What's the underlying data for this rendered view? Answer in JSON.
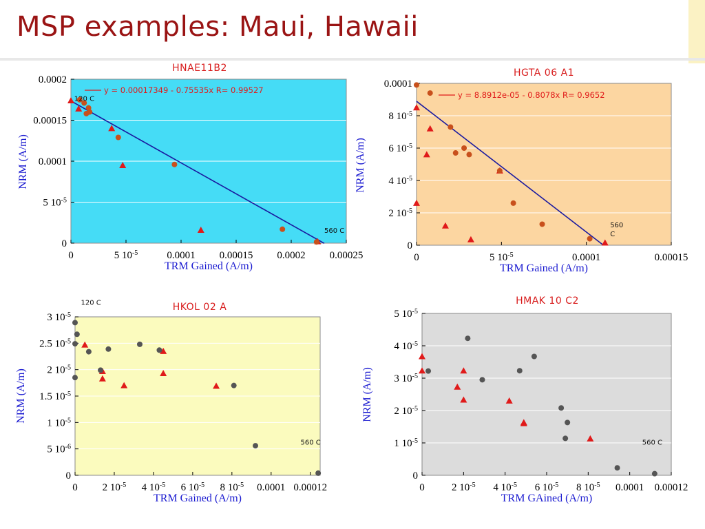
{
  "slide": {
    "title": "MSP examples: Maui, Hawaii"
  },
  "colors": {
    "title": "#9a1414",
    "chart_title": "#d81c1c",
    "axis_label": "#1a1ad0",
    "fit_line": "#1a1aa0",
    "marker_red": "#e01a1a",
    "marker_orange": "#c8501c",
    "marker_gray": "#555555"
  },
  "chart_data": [
    {
      "id": "hnae11b2",
      "type": "scatter",
      "title": "HNAE11B2",
      "xlabel": "TRM Gained (A/m)",
      "ylabel": "NRM (A/m)",
      "background": "#45dcf6",
      "xlim": [
        0,
        0.00025
      ],
      "ylim": [
        0,
        0.0002
      ],
      "xticks": [
        {
          "v": 0,
          "label": "0"
        },
        {
          "v": 5e-05,
          "label": "5 10",
          "exp": "-5"
        },
        {
          "v": 0.0001,
          "label": "0.0001"
        },
        {
          "v": 0.00015,
          "label": "0.00015"
        },
        {
          "v": 0.0002,
          "label": "0.0002"
        },
        {
          "v": 0.00025,
          "label": "0.00025"
        }
      ],
      "yticks": [
        {
          "v": 0,
          "label": "0"
        },
        {
          "v": 5e-05,
          "label": "5 10",
          "exp": "-5"
        },
        {
          "v": 0.0001,
          "label": "0.0001"
        },
        {
          "v": 0.00015,
          "label": "0.00015"
        },
        {
          "v": 0.0002,
          "label": "0.0002"
        }
      ],
      "fit": {
        "slope": -0.75535,
        "intercept": 0.00017349,
        "x": [
          0,
          0.00023
        ]
      },
      "equation": "y = 0.00017349 - 0.75535x   R= 0.99527",
      "annotations": [
        {
          "text": "120 C",
          "at": [
            3e-06,
            0.0001735
          ]
        },
        {
          "text": "560 C",
          "at": [
            0.00023,
            1.25e-05
          ]
        }
      ],
      "series": [
        {
          "marker": "triangle",
          "color": "#e01a1a",
          "points": [
            [
              0,
              0.000174
            ],
            [
              7e-06,
              0.000164
            ],
            [
              3.7e-05,
              0.00014
            ],
            [
              4.7e-05,
              9.5e-05
            ],
            [
              0.000118,
              1.6e-05
            ],
            [
              0.000224,
              2e-06
            ]
          ]
        },
        {
          "marker": "circle",
          "color": "#c8501c",
          "points": [
            [
              8e-06,
              0.000175
            ],
            [
              1.2e-05,
              0.000171
            ],
            [
              1.4e-05,
              0.000158
            ],
            [
              1.6e-05,
              0.000165
            ],
            [
              1.7e-05,
              0.00016
            ],
            [
              4.3e-05,
              0.000129
            ],
            [
              9.4e-05,
              9.6e-05
            ],
            [
              0.000192,
              1.7e-05
            ],
            [
              0.000223,
              1.5e-06
            ]
          ]
        }
      ]
    },
    {
      "id": "hgta06a1",
      "type": "scatter",
      "title": "HGTA  06  A1",
      "xlabel": "TRM Gained (A/m)",
      "ylabel": "NRM (A/m)",
      "background": "#fcd6a1",
      "xlim": [
        0,
        0.00015
      ],
      "ylim": [
        0,
        0.0001
      ],
      "xticks": [
        {
          "v": 0,
          "label": "0"
        },
        {
          "v": 5e-05,
          "label": "5 10",
          "exp": "-5"
        },
        {
          "v": 0.0001,
          "label": "0.0001"
        },
        {
          "v": 0.00015,
          "label": "0.00015"
        }
      ],
      "yticks": [
        {
          "v": 0,
          "label": "0"
        },
        {
          "v": 2e-05,
          "label": "2 10",
          "exp": "-5"
        },
        {
          "v": 4e-05,
          "label": "4 10",
          "exp": "-5"
        },
        {
          "v": 6e-05,
          "label": "6 10",
          "exp": "-5"
        },
        {
          "v": 8e-05,
          "label": "8 10",
          "exp": "-5"
        },
        {
          "v": 0.0001,
          "label": "0.0001"
        }
      ],
      "fit": {
        "slope": -0.8078,
        "intercept": 8.8912e-05,
        "x": [
          0,
          0.00011
        ]
      },
      "equation": "y = 8.8912e-05 - 0.8078x   R= 0.9652",
      "annotations": [
        {
          "text": "560",
          "at": [
            0.000114,
            1.1e-05
          ]
        },
        {
          "text": "C",
          "at": [
            0.000114,
            5.5e-06
          ]
        }
      ],
      "series": [
        {
          "marker": "triangle",
          "color": "#e01a1a",
          "points": [
            [
              0,
              2.6e-05
            ],
            [
              0,
              8.5e-05
            ],
            [
              6e-06,
              5.6e-05
            ],
            [
              8e-06,
              7.2e-05
            ],
            [
              1.7e-05,
              1.2e-05
            ],
            [
              3.2e-05,
              3.5e-06
            ],
            [
              4.9e-05,
              4.6e-05
            ],
            [
              0.000111,
              1.5e-06
            ]
          ]
        },
        {
          "marker": "circle",
          "color": "#c8501c",
          "points": [
            [
              0,
              9.9e-05
            ],
            [
              8e-06,
              9.4e-05
            ],
            [
              2e-05,
              7.3e-05
            ],
            [
              2.3e-05,
              5.7e-05
            ],
            [
              2.8e-05,
              6e-05
            ],
            [
              3.1e-05,
              5.6e-05
            ],
            [
              4.9e-05,
              4.6e-05
            ],
            [
              5.7e-05,
              2.6e-05
            ],
            [
              7.4e-05,
              1.3e-05
            ],
            [
              0.000102,
              4e-06
            ]
          ]
        }
      ]
    },
    {
      "id": "hkol02a",
      "type": "scatter",
      "title": "HKOL  02  A",
      "xlabel": "TRM Gained (A/m)",
      "ylabel": "NRM (A/m)",
      "background": "#fbfbbe",
      "xlim": [
        0,
        0.000125
      ],
      "ylim": [
        0,
        3e-05
      ],
      "xticks": [
        {
          "v": 0,
          "label": "0"
        },
        {
          "v": 2e-05,
          "label": "2 10",
          "exp": "-5"
        },
        {
          "v": 4e-05,
          "label": "4 10",
          "exp": "-5"
        },
        {
          "v": 6e-05,
          "label": "6 10",
          "exp": "-5"
        },
        {
          "v": 8e-05,
          "label": "8 10",
          "exp": "-5"
        },
        {
          "v": 0.0001,
          "label": "0.0001"
        },
        {
          "v": 0.00012,
          "label": "0.00012"
        }
      ],
      "yticks": [
        {
          "v": 0,
          "label": "0"
        },
        {
          "v": 5e-06,
          "label": "5 10",
          "exp": "-6"
        },
        {
          "v": 1e-05,
          "label": "1 10",
          "exp": "-5"
        },
        {
          "v": 1.5e-05,
          "label": "1.5 10",
          "exp": "-5"
        },
        {
          "v": 2e-05,
          "label": "2 10",
          "exp": "-5"
        },
        {
          "v": 2.5e-05,
          "label": "2.5 10",
          "exp": "-5"
        },
        {
          "v": 3e-05,
          "label": "3 10",
          "exp": "-5"
        }
      ],
      "fit": null,
      "equation": "",
      "annotations": [
        {
          "text": "120 C",
          "at": [
            3e-06,
            3.23e-05
          ]
        },
        {
          "text": "560 C",
          "at": [
            0.000115,
            5.8e-06
          ]
        }
      ],
      "series": [
        {
          "marker": "triangle",
          "color": "#e01a1a",
          "points": [
            [
              5e-06,
              2.47e-05
            ],
            [
              1.4e-05,
              1.97e-05
            ],
            [
              1.4e-05,
              1.83e-05
            ],
            [
              2.5e-05,
              1.7e-05
            ],
            [
              4.5e-05,
              2.35e-05
            ],
            [
              4.5e-05,
              1.93e-05
            ],
            [
              7.2e-05,
              1.69e-05
            ]
          ]
        },
        {
          "marker": "circle",
          "color": "#555555",
          "points": [
            [
              0,
              2.89e-05
            ],
            [
              0,
              2.49e-05
            ],
            [
              0,
              1.85e-05
            ],
            [
              1e-06,
              2.67e-05
            ],
            [
              7e-06,
              2.34e-05
            ],
            [
              1.3e-05,
              1.99e-05
            ],
            [
              1.7e-05,
              2.39e-05
            ],
            [
              3.3e-05,
              2.48e-05
            ],
            [
              4.3e-05,
              2.37e-05
            ],
            [
              8.1e-05,
              1.7e-05
            ],
            [
              9.2e-05,
              5.6e-06
            ],
            [
              0.000124,
              4e-07
            ]
          ]
        }
      ]
    },
    {
      "id": "hmak10c2",
      "type": "scatter",
      "title": "HMAK  10  C2",
      "xlabel": "TRM GAined (A/m)",
      "ylabel": "NRM (A/m)",
      "background": "#dcdcdc",
      "xlim": [
        0,
        0.00012
      ],
      "ylim": [
        0,
        5e-05
      ],
      "xticks": [
        {
          "v": 0,
          "label": "0"
        },
        {
          "v": 2e-05,
          "label": "2 10",
          "exp": "-5"
        },
        {
          "v": 4e-05,
          "label": "4 10",
          "exp": "-5"
        },
        {
          "v": 6e-05,
          "label": "6 10",
          "exp": "-5"
        },
        {
          "v": 8e-05,
          "label": "8 10",
          "exp": "-5"
        },
        {
          "v": 0.0001,
          "label": "0.0001"
        },
        {
          "v": 0.00012,
          "label": "0.00012"
        }
      ],
      "yticks": [
        {
          "v": 0,
          "label": "0"
        },
        {
          "v": 1e-05,
          "label": "1 10",
          "exp": "-5"
        },
        {
          "v": 2e-05,
          "label": "2 10",
          "exp": "-5"
        },
        {
          "v": 3e-05,
          "label": "3 10",
          "exp": "-5"
        },
        {
          "v": 4e-05,
          "label": "4 10",
          "exp": "-5"
        },
        {
          "v": 5e-05,
          "label": "5 10",
          "exp": "-5"
        }
      ],
      "fit": null,
      "equation": "",
      "annotations": [
        {
          "text": "560 C",
          "at": [
            0.000106,
            9.5e-06
          ]
        }
      ],
      "series": [
        {
          "marker": "triangle",
          "color": "#e01a1a",
          "points": [
            [
              0,
              3.67e-05
            ],
            [
              0,
              3.23e-05
            ],
            [
              1.7e-05,
              2.73e-05
            ],
            [
              2e-05,
              3.23e-05
            ],
            [
              2e-05,
              2.33e-05
            ],
            [
              4.2e-05,
              2.3e-05
            ],
            [
              4.9e-05,
              1.63e-05
            ],
            [
              4.9e-05,
              1.6e-05
            ],
            [
              8.1e-05,
              1.13e-05
            ]
          ]
        },
        {
          "marker": "circle",
          "color": "#555555",
          "points": [
            [
              3e-06,
              3.22e-05
            ],
            [
              2.2e-05,
              4.23e-05
            ],
            [
              2.9e-05,
              2.95e-05
            ],
            [
              4.7e-05,
              3.23e-05
            ],
            [
              5.4e-05,
              3.67e-05
            ],
            [
              6.7e-05,
              2.08e-05
            ],
            [
              7e-05,
              1.63e-05
            ],
            [
              6.9e-05,
              1.14e-05
            ],
            [
              9.4e-05,
              2.3e-06
            ],
            [
              0.000112,
              5e-07
            ]
          ]
        }
      ]
    }
  ]
}
